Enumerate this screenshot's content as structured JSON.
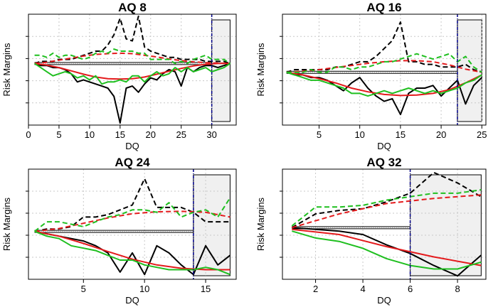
{
  "colors": {
    "black": "#000000",
    "red": "#e41a1c",
    "green": "#1fbf1f",
    "blue": "#00008b",
    "shade": "#f0f0f0",
    "grid": "#c8c8c8",
    "baseline": "#888888"
  },
  "chart_data": [
    {
      "type": "line",
      "title": "AQ 8",
      "xlabel": "DQ",
      "ylabel": "Risk Margins",
      "xticks": [
        0,
        5,
        10,
        15,
        20,
        25,
        30
      ],
      "xlim": [
        0,
        34
      ],
      "ylim": [
        -1.5,
        1.2
      ],
      "grid": true,
      "vline": 30,
      "shade_from": 30,
      "shade_to": 33,
      "series": [
        {
          "color": "black",
          "style": "solid",
          "x": [
            1,
            2,
            3,
            4,
            5,
            6,
            7,
            8,
            9,
            10,
            11,
            12,
            13,
            14,
            15,
            16,
            17,
            18,
            19,
            20,
            21,
            22,
            23,
            24,
            25,
            26,
            27,
            28,
            29,
            30,
            31,
            32,
            33
          ],
          "values": [
            0,
            -0.05,
            -0.05,
            -0.1,
            -0.1,
            -0.15,
            -0.25,
            -0.45,
            -0.4,
            -0.45,
            -0.5,
            -0.55,
            -0.6,
            -0.8,
            -1.45,
            -0.6,
            -0.55,
            -0.7,
            -0.5,
            -0.35,
            -0.4,
            -0.25,
            -0.15,
            -0.2,
            -0.55,
            -0.1,
            -0.2,
            -0.1,
            -0.05,
            -0.05,
            -0.1,
            -0.05,
            0
          ]
        },
        {
          "color": "black",
          "style": "dashed",
          "x": [
            1,
            2,
            3,
            4,
            5,
            6,
            7,
            8,
            9,
            10,
            11,
            12,
            13,
            14,
            15,
            16,
            17,
            18,
            19,
            20,
            21,
            22,
            23,
            24,
            25,
            26,
            27,
            28,
            29,
            30,
            31,
            32,
            33
          ],
          "values": [
            0,
            0.05,
            0.05,
            0.05,
            0.1,
            0.1,
            0.1,
            0.15,
            0.2,
            0.25,
            0.3,
            0.3,
            0.45,
            0.7,
            1.1,
            0.6,
            0.55,
            1.15,
            0.4,
            0.3,
            0.25,
            0.2,
            0.15,
            0.15,
            0.1,
            0.1,
            0.1,
            0.1,
            0.05,
            0.05,
            0.05,
            0.05,
            0
          ]
        },
        {
          "color": "red",
          "style": "dashed",
          "x": [
            1,
            3,
            5,
            7,
            9,
            11,
            13,
            15,
            17,
            19,
            21,
            23,
            25,
            27,
            29,
            31,
            33
          ],
          "values": [
            0,
            0.03,
            0.08,
            0.13,
            0.18,
            0.22,
            0.24,
            0.25,
            0.24,
            0.2,
            0.16,
            0.11,
            0.07,
            0.04,
            0.02,
            0.01,
            0
          ]
        },
        {
          "color": "red",
          "style": "solid",
          "x": [
            1,
            3,
            5,
            7,
            9,
            11,
            13,
            15,
            17,
            19,
            21,
            23,
            25,
            27,
            29,
            31,
            33
          ],
          "values": [
            0,
            -0.04,
            -0.1,
            -0.18,
            -0.26,
            -0.33,
            -0.37,
            -0.38,
            -0.37,
            -0.33,
            -0.26,
            -0.19,
            -0.12,
            -0.06,
            -0.02,
            0,
            0
          ]
        },
        {
          "color": "green",
          "style": "dashed",
          "x": [
            1,
            2,
            3,
            4,
            5,
            6,
            7,
            8,
            9,
            10,
            11,
            12,
            13,
            14,
            15,
            16,
            17,
            18,
            19,
            20,
            21,
            22,
            23,
            24,
            25,
            26,
            27,
            28,
            29,
            30,
            31,
            32,
            33
          ],
          "values": [
            0.2,
            0.2,
            0.15,
            0.25,
            0.15,
            0.2,
            0.2,
            0.15,
            0.1,
            0.15,
            0.25,
            0.3,
            0.25,
            0.35,
            0.3,
            0.3,
            0.3,
            0.25,
            0.25,
            0.1,
            0.1,
            0.1,
            0.1,
            0.0,
            0.05,
            0.0,
            0.1,
            0.15,
            0.2,
            0.1,
            0.1,
            0.1,
            0.0
          ]
        },
        {
          "color": "green",
          "style": "solid",
          "x": [
            1,
            2,
            3,
            4,
            5,
            6,
            7,
            8,
            9,
            10,
            11,
            12,
            13,
            14,
            15,
            16,
            17,
            18,
            19,
            20,
            21,
            22,
            23,
            24,
            25,
            26,
            27,
            28,
            29,
            30,
            31,
            32,
            33
          ],
          "values": [
            0,
            -0.1,
            -0.2,
            -0.3,
            -0.25,
            -0.2,
            -0.25,
            -0.35,
            -0.3,
            -0.4,
            -0.3,
            -0.5,
            -0.45,
            -0.45,
            -0.4,
            -0.45,
            -0.3,
            -0.3,
            -0.45,
            -0.3,
            -0.2,
            -0.3,
            -0.25,
            -0.1,
            -0.2,
            -0.1,
            -0.2,
            -0.15,
            -0.1,
            -0.2,
            -0.15,
            -0.1,
            0
          ]
        }
      ]
    },
    {
      "type": "line",
      "title": "AQ 16",
      "xlabel": "DQ",
      "ylabel": "Risk Margins",
      "xticks": [
        5,
        10,
        15,
        20,
        25
      ],
      "xlim": [
        0.5,
        25.5
      ],
      "ylim": [
        -1.0,
        1.1
      ],
      "grid": true,
      "vline": 22,
      "shade_from": 22,
      "shade_to": 25,
      "series": [
        {
          "color": "black",
          "style": "solid",
          "x": [
            1,
            2,
            3,
            4,
            5,
            6,
            7,
            8,
            9,
            10,
            11,
            12,
            13,
            14,
            15,
            16,
            17,
            18,
            19,
            20,
            21,
            22,
            23,
            24,
            25
          ],
          "values": [
            0,
            -0.05,
            -0.05,
            -0.1,
            -0.1,
            -0.15,
            -0.25,
            -0.35,
            -0.2,
            -0.1,
            -0.3,
            -0.45,
            -0.55,
            -0.5,
            -0.8,
            -0.4,
            -0.3,
            -0.3,
            -0.25,
            -0.45,
            -0.3,
            -0.15,
            -0.6,
            -0.25,
            -0.1
          ]
        },
        {
          "color": "black",
          "style": "dashed",
          "x": [
            1,
            2,
            3,
            4,
            5,
            6,
            7,
            8,
            9,
            10,
            11,
            12,
            13,
            14,
            15,
            16,
            17,
            18,
            19,
            20,
            21,
            22,
            23,
            24,
            25
          ],
          "values": [
            0,
            0.05,
            0.05,
            0.05,
            0.05,
            0.05,
            0.1,
            0.1,
            0.15,
            0.2,
            0.2,
            0.3,
            0.45,
            0.6,
            0.95,
            0.2,
            0.2,
            0.15,
            0.15,
            0.1,
            0.1,
            0.1,
            0.15,
            0.05,
            0.0
          ]
        },
        {
          "color": "red",
          "style": "dashed",
          "x": [
            1,
            3,
            5,
            7,
            9,
            11,
            13,
            15,
            17,
            19,
            21,
            23,
            25
          ],
          "values": [
            0,
            0.02,
            0.05,
            0.09,
            0.13,
            0.17,
            0.2,
            0.22,
            0.22,
            0.2,
            0.14,
            0.06,
            0.0
          ]
        },
        {
          "color": "red",
          "style": "solid",
          "x": [
            1,
            3,
            5,
            7,
            9,
            11,
            13,
            15,
            17,
            19,
            21,
            23,
            25
          ],
          "values": [
            0,
            -0.05,
            -0.12,
            -0.2,
            -0.3,
            -0.37,
            -0.42,
            -0.44,
            -0.43,
            -0.4,
            -0.33,
            -0.2,
            -0.05
          ]
        },
        {
          "color": "green",
          "style": "dashed",
          "x": [
            1,
            2,
            3,
            4,
            5,
            6,
            7,
            8,
            9,
            10,
            11,
            12,
            13,
            14,
            15,
            16,
            17,
            18,
            19,
            20,
            21,
            22,
            23,
            24,
            25
          ],
          "values": [
            0,
            0.0,
            0.0,
            0.05,
            0.0,
            0.0,
            0.1,
            0.1,
            0.05,
            0.1,
            0.1,
            0.15,
            0.2,
            0.2,
            0.25,
            0.3,
            0.35,
            0.3,
            0.25,
            0.3,
            0.35,
            0.2,
            0.3,
            0.1,
            0.0
          ]
        },
        {
          "color": "green",
          "style": "solid",
          "x": [
            1,
            2,
            3,
            4,
            5,
            6,
            7,
            8,
            9,
            10,
            11,
            12,
            13,
            14,
            15,
            16,
            17,
            18,
            19,
            20,
            21,
            22,
            23,
            24,
            25
          ],
          "values": [
            0,
            -0.05,
            -0.1,
            -0.15,
            -0.15,
            -0.2,
            -0.25,
            -0.3,
            -0.4,
            -0.4,
            -0.45,
            -0.4,
            -0.35,
            -0.4,
            -0.35,
            -0.3,
            -0.35,
            -0.4,
            -0.35,
            -0.4,
            -0.35,
            -0.3,
            -0.2,
            -0.15,
            -0.05
          ]
        }
      ]
    },
    {
      "type": "line",
      "title": "AQ 24",
      "xlabel": "DQ",
      "ylabel": "Risk Margins",
      "xticks": [
        5,
        10,
        15
      ],
      "xlim": [
        0.5,
        17.5
      ],
      "ylim": [
        -1.0,
        1.3
      ],
      "grid": true,
      "vline": 14,
      "shade_from": 14,
      "shade_to": 17,
      "series": [
        {
          "color": "black",
          "style": "solid",
          "x": [
            1,
            2,
            3,
            4,
            5,
            6,
            7,
            8,
            9,
            10,
            11,
            12,
            13,
            14,
            15,
            16,
            17
          ],
          "values": [
            0,
            -0.05,
            -0.1,
            -0.15,
            -0.2,
            -0.3,
            -0.45,
            -0.85,
            -0.45,
            -0.9,
            -0.3,
            -0.45,
            -0.7,
            -0.9,
            -0.3,
            -0.7,
            -0.5
          ]
        },
        {
          "color": "black",
          "style": "dashed",
          "x": [
            1,
            2,
            3,
            4,
            5,
            6,
            7,
            8,
            9,
            10,
            11,
            12,
            13,
            14,
            15,
            16,
            17
          ],
          "values": [
            0,
            0.05,
            0.05,
            0.1,
            0.3,
            0.3,
            0.35,
            0.45,
            0.55,
            1.1,
            0.5,
            0.5,
            0.5,
            0.4,
            0.2,
            0.2,
            0.2
          ]
        },
        {
          "color": "red",
          "style": "dashed",
          "x": [
            1,
            3,
            5,
            7,
            9,
            11,
            13,
            15,
            17
          ],
          "values": [
            0,
            0.06,
            0.17,
            0.28,
            0.37,
            0.41,
            0.42,
            0.4,
            0.3
          ]
        },
        {
          "color": "red",
          "style": "solid",
          "x": [
            1,
            3,
            5,
            7,
            9,
            11,
            13,
            15,
            17
          ],
          "values": [
            0,
            -0.1,
            -0.25,
            -0.42,
            -0.58,
            -0.7,
            -0.77,
            -0.8,
            -0.8
          ]
        },
        {
          "color": "green",
          "style": "dashed",
          "x": [
            1,
            2,
            3,
            4,
            5,
            6,
            7,
            8,
            9,
            10,
            11,
            12,
            13,
            14,
            15,
            16,
            17
          ],
          "values": [
            0,
            0.2,
            0.2,
            0.15,
            0.1,
            0.2,
            0.3,
            0.35,
            0.45,
            0.45,
            0.4,
            0.6,
            0.3,
            0.4,
            0.45,
            0.3,
            0.7
          ]
        },
        {
          "color": "green",
          "style": "solid",
          "x": [
            1,
            2,
            3,
            4,
            5,
            6,
            7,
            8,
            9,
            10,
            11,
            12,
            13,
            14,
            15,
            16,
            17
          ],
          "values": [
            0,
            -0.1,
            -0.15,
            -0.3,
            -0.35,
            -0.4,
            -0.5,
            -0.6,
            -0.6,
            -0.7,
            -0.75,
            -0.8,
            -0.8,
            -0.8,
            -0.75,
            -0.8,
            -0.9
          ]
        }
      ]
    },
    {
      "type": "line",
      "title": "AQ 32",
      "xlabel": "DQ",
      "ylabel": "Risk Margins",
      "xticks": [
        2,
        4,
        6,
        8
      ],
      "xlim": [
        0.6,
        9.2
      ],
      "ylim": [
        -1.5,
        1.7
      ],
      "grid": true,
      "vline": 6,
      "shade_from": 6,
      "shade_to": 9,
      "series": [
        {
          "color": "black",
          "style": "solid",
          "x": [
            1,
            2,
            3,
            4,
            5,
            6,
            7,
            8,
            9
          ],
          "values": [
            0,
            -0.05,
            -0.1,
            -0.2,
            -0.5,
            -0.75,
            -1.1,
            -1.4,
            -0.8
          ]
        },
        {
          "color": "black",
          "style": "dashed",
          "x": [
            1,
            2,
            3,
            4,
            5,
            6,
            7,
            8,
            9
          ],
          "values": [
            0,
            0.4,
            0.5,
            0.55,
            0.75,
            1.0,
            1.6,
            1.3,
            0.9
          ]
        },
        {
          "color": "red",
          "style": "dashed",
          "x": [
            1,
            3,
            5,
            7,
            9
          ],
          "values": [
            0,
            0.4,
            0.7,
            0.85,
            0.95
          ]
        },
        {
          "color": "red",
          "style": "solid",
          "x": [
            1,
            3,
            5,
            7,
            9
          ],
          "values": [
            -0.05,
            -0.2,
            -0.55,
            -0.85,
            -1.1
          ]
        },
        {
          "color": "green",
          "style": "dashed",
          "x": [
            1,
            2,
            3,
            4,
            5,
            6,
            7,
            8,
            9
          ],
          "values": [
            0.05,
            0.6,
            0.6,
            0.65,
            0.8,
            0.9,
            1.0,
            1.0,
            1.1
          ]
        },
        {
          "color": "green",
          "style": "solid",
          "x": [
            1,
            2,
            3,
            4,
            5,
            6,
            7,
            8,
            9
          ],
          "values": [
            -0.1,
            -0.3,
            -0.4,
            -0.6,
            -0.9,
            -1.1,
            -1.2,
            -1.2,
            -1.0
          ]
        }
      ]
    }
  ]
}
